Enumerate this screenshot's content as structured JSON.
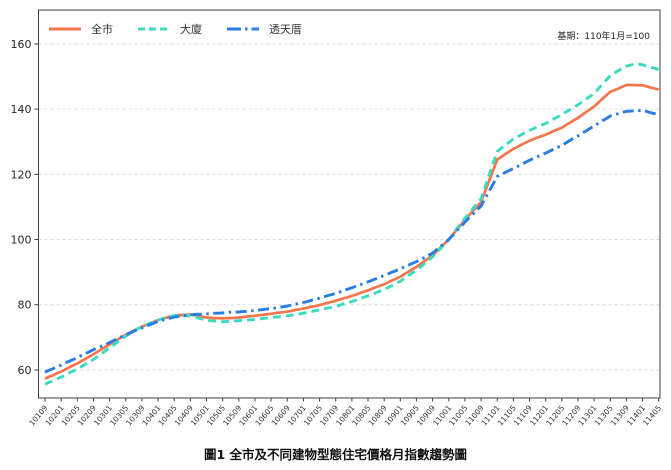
{
  "chart_data": {
    "type": "line",
    "title": "",
    "caption": "圖1 全市及不同建物型態住宅價格月指數趨勢圖",
    "note": "基期：110年1月=100",
    "legend_position": "top-left-inside",
    "grid": "horizontal-dashed",
    "x_tick_every": 4,
    "yticks": [
      60,
      80,
      100,
      120,
      140,
      160
    ],
    "ylim": [
      51.4,
      170.4
    ],
    "colors": {
      "grid": "#dcdcdc",
      "spine": "#3f3f3f",
      "tick_label": "#333333"
    },
    "x": [
      "10109",
      "10110",
      "10111",
      "10112",
      "10201",
      "10202",
      "10203",
      "10204",
      "10205",
      "10206",
      "10207",
      "10208",
      "10209",
      "10210",
      "10211",
      "10212",
      "10301",
      "10302",
      "10303",
      "10304",
      "10305",
      "10306",
      "10307",
      "10308",
      "10309",
      "10310",
      "10311",
      "10312",
      "10401",
      "10402",
      "10403",
      "10404",
      "10405",
      "10406",
      "10407",
      "10408",
      "10409",
      "10410",
      "10411",
      "10412",
      "10501",
      "10502",
      "10503",
      "10504",
      "10505",
      "10506",
      "10507",
      "10508",
      "10509",
      "10510",
      "10511",
      "10512",
      "10601",
      "10602",
      "10603",
      "10604",
      "10605",
      "10606",
      "10607",
      "10608",
      "10609",
      "10610",
      "10611",
      "10612",
      "10701",
      "10702",
      "10703",
      "10704",
      "10705",
      "10706",
      "10707",
      "10708",
      "10709",
      "10710",
      "10711",
      "10712",
      "10801",
      "10802",
      "10803",
      "10804",
      "10805",
      "10806",
      "10807",
      "10808",
      "10809",
      "10810",
      "10811",
      "10812",
      "10901",
      "10902",
      "10903",
      "10904",
      "10905",
      "10906",
      "10907",
      "10908",
      "10909",
      "10910",
      "10911",
      "10912",
      "11001",
      "11002",
      "11003",
      "11004",
      "11005",
      "11006",
      "11007",
      "11008",
      "11009",
      "11010",
      "11011",
      "11012",
      "11101",
      "11102",
      "11103",
      "11104",
      "11105",
      "11106",
      "11107",
      "11108",
      "11109",
      "11110",
      "11111",
      "11112",
      "11201",
      "11202",
      "11203",
      "11204",
      "11205",
      "11206",
      "11207",
      "11208",
      "11209",
      "11210",
      "11211",
      "11212",
      "11301",
      "11302",
      "11303",
      "11304",
      "11305",
      "11306",
      "11307",
      "11308",
      "11309",
      "11310",
      "11311",
      "11312",
      "11401",
      "11402",
      "11403",
      "11404",
      "11405"
    ],
    "series": [
      {
        "name": "全市",
        "color": "#F5764D",
        "style": "solid",
        "values": [
          57.3,
          57.9,
          58.4,
          59.0,
          59.5,
          60.1,
          60.8,
          61.4,
          62.0,
          62.7,
          63.4,
          64.1,
          64.8,
          65.6,
          66.3,
          67.1,
          67.8,
          68.6,
          69.3,
          70.1,
          70.8,
          71.4,
          72.1,
          72.7,
          73.3,
          73.8,
          74.3,
          74.8,
          75.3,
          75.7,
          76.0,
          76.4,
          76.7,
          76.8,
          76.9,
          76.9,
          77.0,
          76.8,
          76.6,
          76.3,
          76.1,
          76.0,
          75.9,
          75.9,
          75.8,
          75.9,
          75.9,
          76.0,
          76.1,
          76.2,
          76.4,
          76.5,
          76.6,
          76.8,
          76.9,
          77.1,
          77.2,
          77.4,
          77.6,
          77.7,
          77.9,
          78.1,
          78.4,
          78.6,
          78.8,
          79.1,
          79.4,
          79.6,
          79.9,
          80.2,
          80.6,
          80.9,
          81.2,
          81.6,
          82.0,
          82.3,
          82.7,
          83.1,
          83.6,
          84.0,
          84.4,
          84.9,
          85.4,
          85.8,
          86.3,
          86.9,
          87.5,
          88.0,
          88.6,
          89.4,
          90.1,
          90.9,
          91.6,
          92.5,
          93.4,
          94.3,
          95.2,
          96.4,
          97.6,
          98.8,
          100.0,
          101.5,
          103.0,
          104.5,
          106.0,
          107.4,
          108.8,
          110.1,
          111.5,
          114.8,
          118.0,
          121.3,
          124.5,
          125.3,
          126.2,
          127.0,
          127.8,
          128.4,
          129.1,
          129.7,
          130.3,
          130.8,
          131.3,
          131.7,
          132.2,
          132.7,
          133.3,
          133.8,
          134.3,
          135.1,
          135.8,
          136.6,
          137.3,
          138.2,
          139.1,
          139.9,
          140.8,
          141.9,
          143.1,
          144.2,
          145.3,
          145.8,
          146.3,
          146.9,
          147.4,
          147.4,
          147.4,
          147.3,
          147.3,
          147.0,
          146.6,
          146.3,
          146.0
        ]
      },
      {
        "name": "大廈",
        "color": "#3CDBC0",
        "style": "dashed",
        "values": [
          55.6,
          56.2,
          56.7,
          57.3,
          57.8,
          58.4,
          59.1,
          59.7,
          60.3,
          61.0,
          61.8,
          62.5,
          63.2,
          64.1,
          65.0,
          65.9,
          66.8,
          67.7,
          68.6,
          69.5,
          70.4,
          71.1,
          71.9,
          72.6,
          73.3,
          73.8,
          74.3,
          74.8,
          75.3,
          75.7,
          76.0,
          76.4,
          76.7,
          76.7,
          76.7,
          76.6,
          76.6,
          76.3,
          75.9,
          75.6,
          75.2,
          75.1,
          75.0,
          74.9,
          74.8,
          74.9,
          74.9,
          75.0,
          75.1,
          75.2,
          75.3,
          75.4,
          75.5,
          75.6,
          75.8,
          75.9,
          76.0,
          76.2,
          76.3,
          76.5,
          76.6,
          76.8,
          77.0,
          77.2,
          77.4,
          77.7,
          77.9,
          78.2,
          78.4,
          78.7,
          79.0,
          79.2,
          79.5,
          79.9,
          80.3,
          80.6,
          81.0,
          81.4,
          81.9,
          82.3,
          82.7,
          83.2,
          83.7,
          84.2,
          84.7,
          85.3,
          85.9,
          86.6,
          87.2,
          88.1,
          88.9,
          89.8,
          90.6,
          91.6,
          92.6,
          93.7,
          94.7,
          96.0,
          97.3,
          98.7,
          100.0,
          101.6,
          103.3,
          104.9,
          106.5,
          108.0,
          109.5,
          111.0,
          112.5,
          116.1,
          119.8,
          123.4,
          127.0,
          128.0,
          128.9,
          129.9,
          130.8,
          131.5,
          132.2,
          132.8,
          133.5,
          134.0,
          134.6,
          135.1,
          135.6,
          136.3,
          137.0,
          137.6,
          138.3,
          139.1,
          139.8,
          140.6,
          141.3,
          142.2,
          143.1,
          143.9,
          144.8,
          146.2,
          147.6,
          148.9,
          150.3,
          151.0,
          151.8,
          152.5,
          153.2,
          153.5,
          153.8,
          153.8,
          153.6,
          153.2,
          152.9,
          152.5,
          152.2
        ]
      },
      {
        "name": "透天厝",
        "color": "#2A7DE1",
        "style": "dashdot",
        "values": [
          59.3,
          59.9,
          60.4,
          61.0,
          61.5,
          62.1,
          62.7,
          63.2,
          63.8,
          64.4,
          65.0,
          65.6,
          66.2,
          66.8,
          67.3,
          67.9,
          68.4,
          69.0,
          69.6,
          70.2,
          70.8,
          71.3,
          71.9,
          72.4,
          72.9,
          73.4,
          73.9,
          74.4,
          74.9,
          75.2,
          75.6,
          75.9,
          76.2,
          76.4,
          76.6,
          76.7,
          76.9,
          77.0,
          77.1,
          77.1,
          77.2,
          77.3,
          77.4,
          77.4,
          77.5,
          77.6,
          77.7,
          77.7,
          77.8,
          77.9,
          78.0,
          78.1,
          78.2,
          78.4,
          78.5,
          78.7,
          78.8,
          79.0,
          79.2,
          79.4,
          79.6,
          79.9,
          80.2,
          80.4,
          80.7,
          81.0,
          81.4,
          81.7,
          82.0,
          82.4,
          82.8,
          83.1,
          83.5,
          83.9,
          84.4,
          84.8,
          85.2,
          85.7,
          86.1,
          86.6,
          87.0,
          87.5,
          88.0,
          88.5,
          89.0,
          89.5,
          90.0,
          90.5,
          91.0,
          91.6,
          92.1,
          92.7,
          93.2,
          93.9,
          94.5,
          95.2,
          95.8,
          96.9,
          97.9,
          99.0,
          100.0,
          101.3,
          102.7,
          104.0,
          105.3,
          106.6,
          107.8,
          109.1,
          110.3,
          112.6,
          114.8,
          117.1,
          119.3,
          119.9,
          120.6,
          121.2,
          121.8,
          122.4,
          123.1,
          123.7,
          124.3,
          124.9,
          125.4,
          126.0,
          126.5,
          127.1,
          127.7,
          128.3,
          128.9,
          129.6,
          130.4,
          131.1,
          131.8,
          132.6,
          133.3,
          134.1,
          134.8,
          135.6,
          136.4,
          137.1,
          137.9,
          138.3,
          138.6,
          139.0,
          139.3,
          139.4,
          139.5,
          139.5,
          139.6,
          139.3,
          138.9,
          138.6,
          138.2
        ]
      }
    ]
  }
}
